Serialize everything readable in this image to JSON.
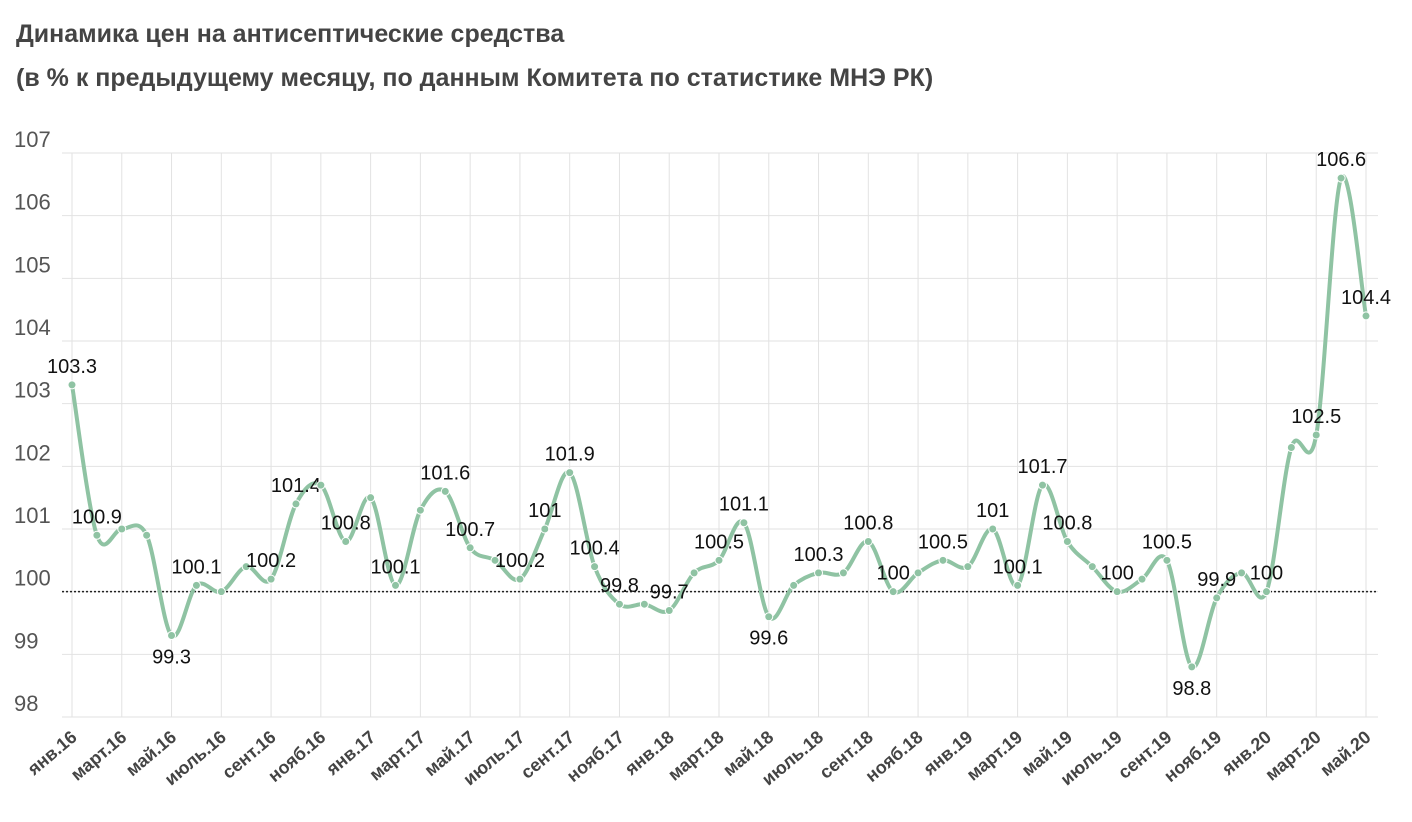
{
  "chart_data": {
    "type": "line",
    "title": "Динамика цен на антисептические средства",
    "subtitle": "(в % к предыдущему месяцу, по данным Комитета по статистике МНЭ РК)",
    "categories": [
      "янв.16",
      null,
      "март.16",
      null,
      "май.16",
      null,
      "июль.16",
      null,
      "сент.16",
      null,
      "нояб.16",
      null,
      "янв.17",
      null,
      "март.17",
      null,
      "май.17",
      null,
      "июль.17",
      null,
      "сент.17",
      null,
      "нояб.17",
      null,
      "янв.18",
      null,
      "март.18",
      null,
      "май.18",
      null,
      "июль.18",
      null,
      "сент.18",
      null,
      "нояб.18",
      null,
      "янв.19",
      null,
      "март.19",
      null,
      "май.19",
      null,
      "июль.19",
      null,
      "сент.19",
      null,
      "нояб.19",
      null,
      "янв.20",
      null,
      "март.20",
      null,
      "май.20"
    ],
    "values": [
      103.3,
      100.9,
      101.0,
      100.9,
      99.3,
      100.1,
      100.0,
      100.4,
      100.2,
      101.4,
      101.7,
      100.8,
      101.5,
      100.1,
      101.3,
      101.6,
      100.7,
      100.5,
      100.2,
      101,
      101.9,
      100.4,
      99.8,
      99.8,
      99.7,
      100.3,
      100.5,
      101.1,
      99.6,
      100.1,
      100.3,
      100.3,
      100.8,
      100,
      100.3,
      100.5,
      100.4,
      101,
      100.1,
      101.7,
      100.8,
      100.4,
      100,
      100.2,
      100.5,
      98.8,
      99.9,
      100.3,
      100,
      102.3,
      102.5,
      106.6,
      104.4
    ],
    "value_labels": [
      "103.3",
      "100.9",
      null,
      null,
      "99.3",
      "100.1",
      null,
      null,
      "100.2",
      "101.4",
      null,
      "100.8",
      null,
      "100.1",
      null,
      "101.6",
      "100.7",
      null,
      "100.2",
      "101",
      "101.9",
      "100.4",
      "99.8",
      null,
      "99.7",
      null,
      "100.5",
      "101.1",
      "99.6",
      null,
      "100.3",
      null,
      "100.8",
      "100",
      null,
      "100.5",
      null,
      "101",
      "100.1",
      "101.7",
      "100.8",
      null,
      "100",
      null,
      "100.5",
      "98.8",
      "99.9",
      null,
      "100",
      null,
      "102.5",
      "106.6",
      "104.4"
    ],
    "color": "#8fc3a3",
    "ylim": [
      98,
      107
    ],
    "yticks": [
      98,
      99,
      100,
      101,
      102,
      103,
      104,
      105,
      106,
      107
    ],
    "reference_line": 100,
    "grid": true
  }
}
